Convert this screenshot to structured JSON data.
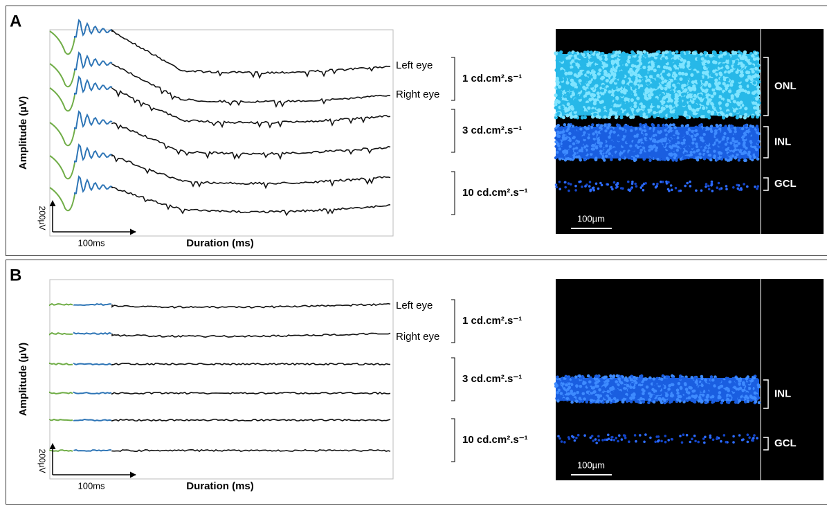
{
  "panels": [
    {
      "label": "A",
      "y_axis_label": "Amplitude (µV)",
      "x_axis_label": "Duration (ms)",
      "scale_y": "200µV",
      "scale_x": "100ms",
      "trace_labels": [
        "Left eye",
        "Right eye"
      ],
      "intensities": [
        "1 cd.cm².s⁻¹",
        "3 cd.cm².s⁻¹",
        "10 cd.cm².s⁻¹"
      ],
      "layers": [
        "ONL",
        "INL",
        "GCL"
      ],
      "scale_bar": "100µm"
    },
    {
      "label": "B",
      "y_axis_label": "Amplitude (µV)",
      "x_axis_label": "Duration (ms)",
      "scale_y": "200µV",
      "scale_x": "100ms",
      "trace_labels": [
        "Left eye",
        "Right eye"
      ],
      "intensities": [
        "1 cd.cm².s⁻¹",
        "3 cd.cm².s⁻¹",
        "10 cd.cm².s⁻¹"
      ],
      "layers": [
        "INL",
        "GCL"
      ],
      "scale_bar": "100µm"
    }
  ]
}
